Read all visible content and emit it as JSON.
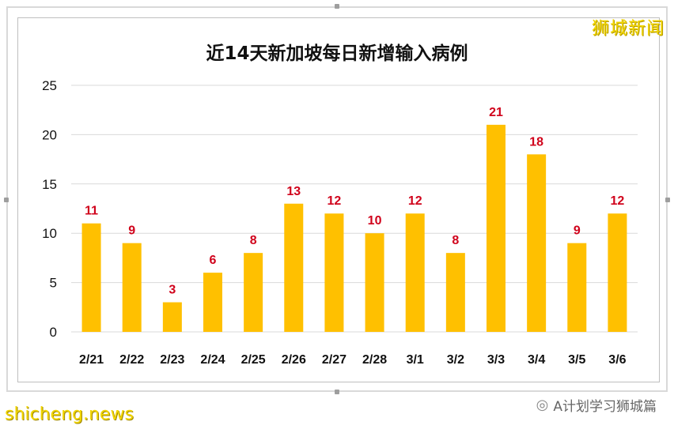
{
  "watermark_top": "狮城新闻",
  "watermark_bottom": "shicheng.news",
  "wechat_label": "A计划学习狮城篇",
  "colors": {
    "bar": "#FFC000",
    "data_label": "#D0021B",
    "grid": "#D9D9D9"
  },
  "chart_data": {
    "type": "bar",
    "title": "近14天新加坡每日新增输入病例",
    "categories": [
      "2/21",
      "2/22",
      "2/23",
      "2/24",
      "2/25",
      "2/26",
      "2/27",
      "2/28",
      "3/1",
      "3/2",
      "3/3",
      "3/4",
      "3/5",
      "3/6"
    ],
    "values": [
      11,
      9,
      3,
      6,
      8,
      13,
      12,
      10,
      12,
      8,
      21,
      18,
      9,
      12
    ],
    "ylim": [
      0,
      25
    ],
    "yticks": [
      0,
      5,
      10,
      15,
      20,
      25
    ],
    "grid": true
  }
}
